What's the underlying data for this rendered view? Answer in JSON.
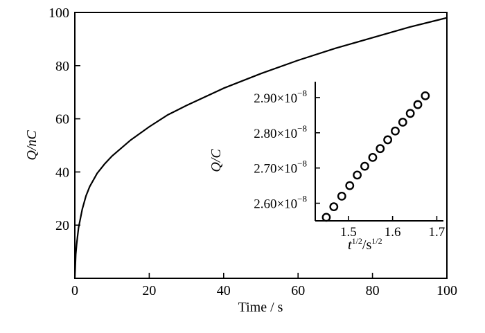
{
  "chart_data": [
    {
      "type": "line",
      "xlabel": "Time / s",
      "ylabel": "Q/nC",
      "xlim": [
        0,
        100
      ],
      "ylim": [
        0,
        100
      ],
      "x_ticks": [
        0,
        20,
        40,
        60,
        80,
        100
      ],
      "y_ticks": [
        20,
        40,
        60,
        80,
        100
      ],
      "x_tick_labels": [
        "0",
        "20",
        "40",
        "60",
        "80",
        "100"
      ],
      "y_tick_labels": [
        "20",
        "40",
        "60",
        "80",
        "100"
      ],
      "grid": false,
      "series": [
        {
          "x": [
            0,
            0.25,
            0.5,
            1,
            2,
            3,
            4,
            5,
            6,
            8,
            10,
            15,
            20,
            25,
            30,
            40,
            50,
            60,
            70,
            80,
            90,
            100
          ],
          "y": [
            0,
            9,
            13,
            19,
            26,
            31,
            34.5,
            37,
            39.5,
            43,
            46,
            52,
            57,
            61.5,
            65,
            71.5,
            77,
            82,
            86.5,
            90.5,
            94.5,
            98
          ]
        }
      ]
    },
    {
      "type": "scatter",
      "xlabel": "t1/2/s1/2",
      "xlabel_parts": {
        "t": "t",
        "t_exp": "1/2",
        "sep": "/s",
        "s_exp": "1/2"
      },
      "ylabel": "Q/C",
      "xlim": [
        1.425,
        1.715
      ],
      "ylim": [
        2.55e-08,
        2.945e-08
      ],
      "x_ticks": [
        1.5,
        1.6,
        1.7
      ],
      "x_tick_labels": [
        "1.5",
        "1.6",
        "1.7"
      ],
      "y_ticks": [
        2.6e-08,
        2.7e-08,
        2.8e-08,
        2.9e-08
      ],
      "y_tick_labels": [
        {
          "mantissa": "2.60",
          "times": "×",
          "base": "10",
          "exp": "−8"
        },
        {
          "mantissa": "2.70",
          "times": "×",
          "base": "10",
          "exp": "−8"
        },
        {
          "mantissa": "2.80",
          "times": "×",
          "base": "10",
          "exp": "−8"
        },
        {
          "mantissa": "2.90",
          "times": "×",
          "base": "10",
          "exp": "−8"
        }
      ],
      "grid": false,
      "marker": "open-circle",
      "series": [
        {
          "x": [
            1.45,
            1.467,
            1.485,
            1.503,
            1.52,
            1.537,
            1.555,
            1.572,
            1.589,
            1.606,
            1.623,
            1.64,
            1.657,
            1.674
          ],
          "y": [
            2.56e-08,
            2.59e-08,
            2.62e-08,
            2.65e-08,
            2.68e-08,
            2.705e-08,
            2.73e-08,
            2.755e-08,
            2.78e-08,
            2.805e-08,
            2.83e-08,
            2.855e-08,
            2.88e-08,
            2.905e-08
          ]
        }
      ]
    }
  ]
}
